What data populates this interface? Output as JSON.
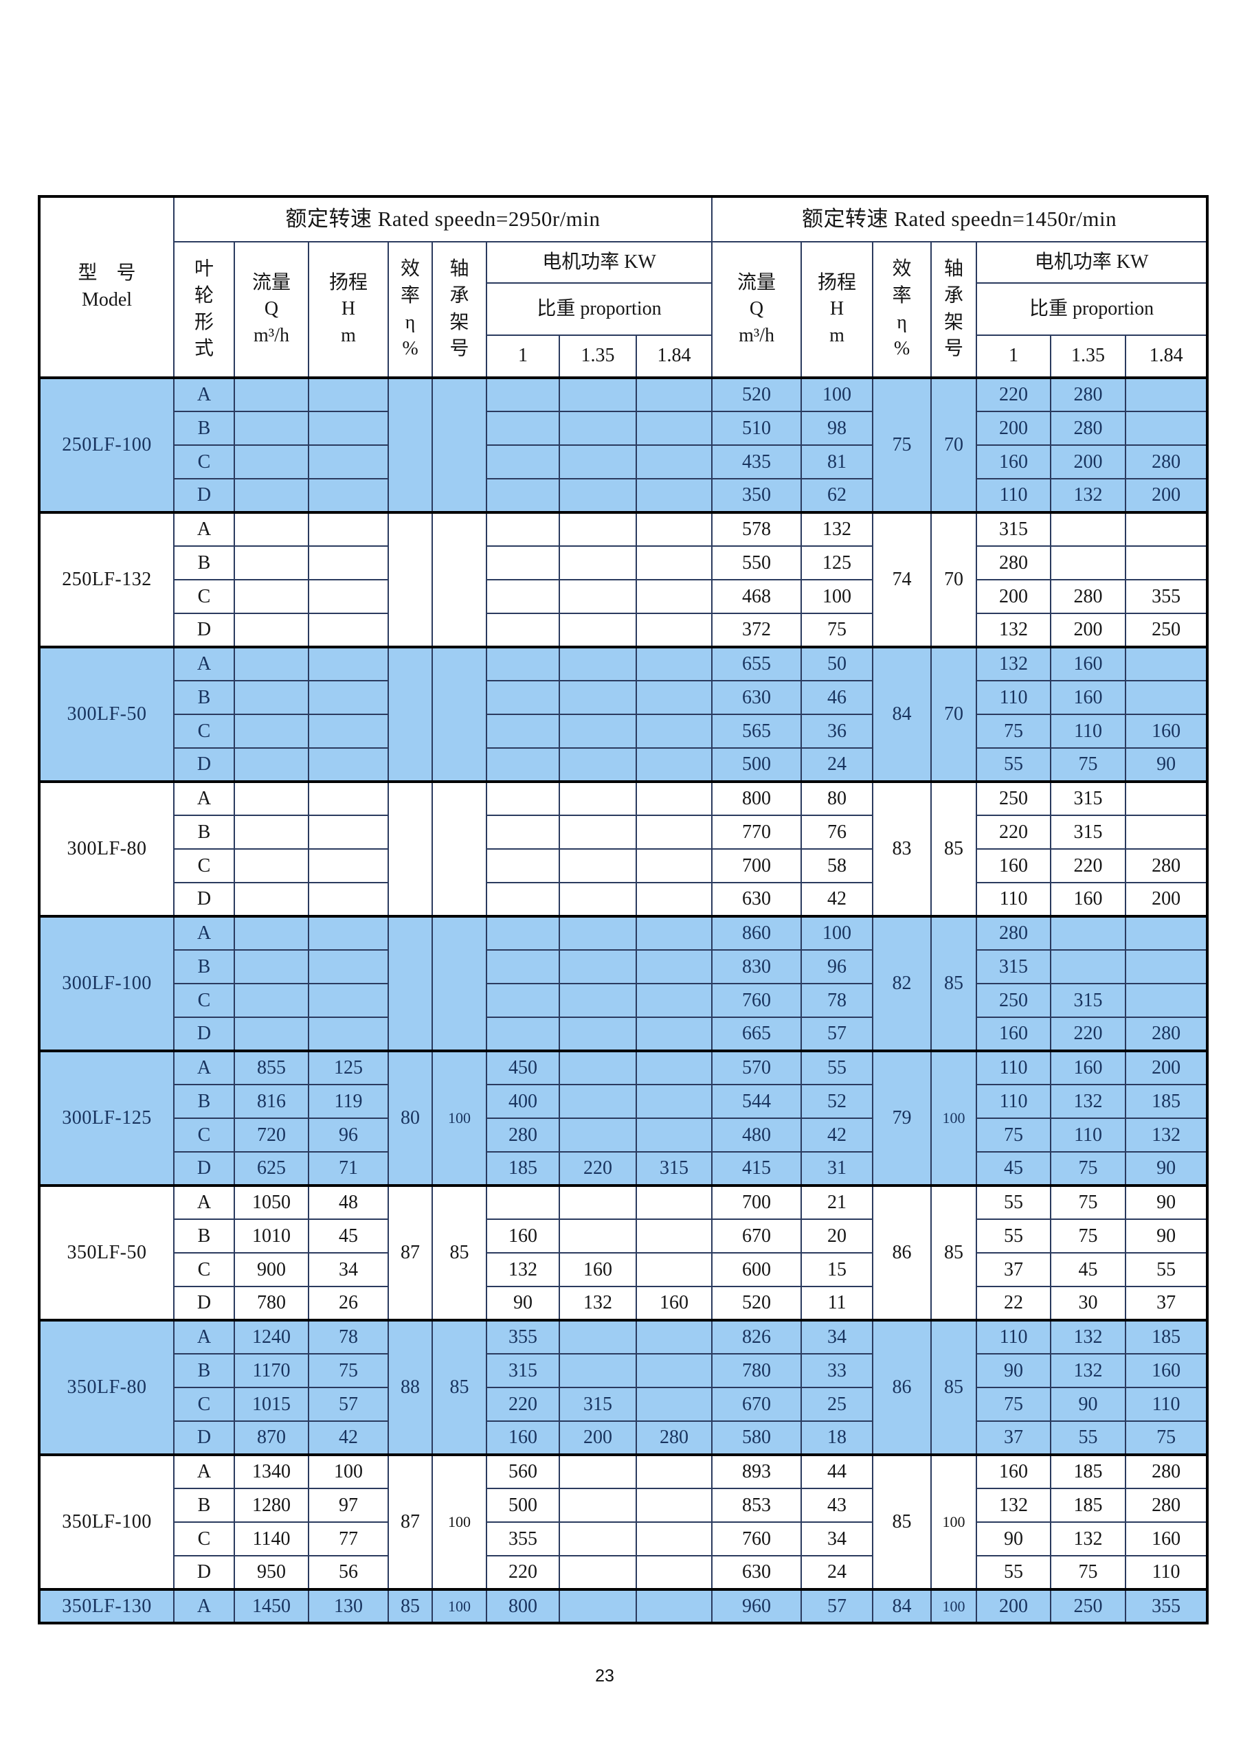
{
  "page": {
    "number": "23"
  },
  "table": {
    "header": {
      "model_label": "型　号\nModel",
      "speed_2950": "额定转速 Rated speedn=2950r/min",
      "speed_1450": "额定转速 Rated speedn=1450r/min",
      "impeller_label": "叶\n轮\n形\n式",
      "flow_label": "流量\nQ\nm³/h",
      "head_label": "扬程\nH\nm",
      "efficiency_label": "效\n率\nη\n%",
      "bearing_label": "轴\n承\n架\n号",
      "motor_power_label": "电机功率 KW",
      "proportion_label": "比重 proportion",
      "prop_cols": [
        "1",
        "1.35",
        "1.84"
      ]
    },
    "highlight_color": "#9ECDF3",
    "groups": [
      {
        "model": "250LF-100",
        "highlight": true,
        "eff_2950": "",
        "bearing_2950": "",
        "eff_1450": "75",
        "bearing_1450": "70",
        "rows": [
          {
            "impeller": "A",
            "q_2950": "",
            "h_2950": "",
            "p_2950": [
              "",
              "",
              ""
            ],
            "q_1450": "520",
            "h_1450": "100",
            "p_1450": [
              "220",
              "280",
              ""
            ]
          },
          {
            "impeller": "B",
            "q_2950": "",
            "h_2950": "",
            "p_2950": [
              "",
              "",
              ""
            ],
            "q_1450": "510",
            "h_1450": "98",
            "p_1450": [
              "200",
              "280",
              ""
            ]
          },
          {
            "impeller": "C",
            "q_2950": "",
            "h_2950": "",
            "p_2950": [
              "",
              "",
              ""
            ],
            "q_1450": "435",
            "h_1450": "81",
            "p_1450": [
              "160",
              "200",
              "280"
            ]
          },
          {
            "impeller": "D",
            "q_2950": "",
            "h_2950": "",
            "p_2950": [
              "",
              "",
              ""
            ],
            "q_1450": "350",
            "h_1450": "62",
            "p_1450": [
              "110",
              "132",
              "200"
            ]
          }
        ]
      },
      {
        "model": "250LF-132",
        "highlight": false,
        "eff_2950": "",
        "bearing_2950": "",
        "eff_1450": "74",
        "bearing_1450": "70",
        "rows": [
          {
            "impeller": "A",
            "q_2950": "",
            "h_2950": "",
            "p_2950": [
              "",
              "",
              ""
            ],
            "q_1450": "578",
            "h_1450": "132",
            "p_1450": [
              "315",
              "",
              ""
            ]
          },
          {
            "impeller": "B",
            "q_2950": "",
            "h_2950": "",
            "p_2950": [
              "",
              "",
              ""
            ],
            "q_1450": "550",
            "h_1450": "125",
            "p_1450": [
              "280",
              "",
              ""
            ]
          },
          {
            "impeller": "C",
            "q_2950": "",
            "h_2950": "",
            "p_2950": [
              "",
              "",
              ""
            ],
            "q_1450": "468",
            "h_1450": "100",
            "p_1450": [
              "200",
              "280",
              "355"
            ]
          },
          {
            "impeller": "D",
            "q_2950": "",
            "h_2950": "",
            "p_2950": [
              "",
              "",
              ""
            ],
            "q_1450": "372",
            "h_1450": "75",
            "p_1450": [
              "132",
              "200",
              "250"
            ]
          }
        ]
      },
      {
        "model": "300LF-50",
        "highlight": true,
        "eff_2950": "",
        "bearing_2950": "",
        "eff_1450": "84",
        "bearing_1450": "70",
        "rows": [
          {
            "impeller": "A",
            "q_2950": "",
            "h_2950": "",
            "p_2950": [
              "",
              "",
              ""
            ],
            "q_1450": "655",
            "h_1450": "50",
            "p_1450": [
              "132",
              "160",
              ""
            ]
          },
          {
            "impeller": "B",
            "q_2950": "",
            "h_2950": "",
            "p_2950": [
              "",
              "",
              ""
            ],
            "q_1450": "630",
            "h_1450": "46",
            "p_1450": [
              "110",
              "160",
              ""
            ]
          },
          {
            "impeller": "C",
            "q_2950": "",
            "h_2950": "",
            "p_2950": [
              "",
              "",
              ""
            ],
            "q_1450": "565",
            "h_1450": "36",
            "p_1450": [
              "75",
              "110",
              "160"
            ]
          },
          {
            "impeller": "D",
            "q_2950": "",
            "h_2950": "",
            "p_2950": [
              "",
              "",
              ""
            ],
            "q_1450": "500",
            "h_1450": "24",
            "p_1450": [
              "55",
              "75",
              "90"
            ]
          }
        ]
      },
      {
        "model": "300LF-80",
        "highlight": false,
        "eff_2950": "",
        "bearing_2950": "",
        "eff_1450": "83",
        "bearing_1450": "85",
        "rows": [
          {
            "impeller": "A",
            "q_2950": "",
            "h_2950": "",
            "p_2950": [
              "",
              "",
              ""
            ],
            "q_1450": "800",
            "h_1450": "80",
            "p_1450": [
              "250",
              "315",
              ""
            ]
          },
          {
            "impeller": "B",
            "q_2950": "",
            "h_2950": "",
            "p_2950": [
              "",
              "",
              ""
            ],
            "q_1450": "770",
            "h_1450": "76",
            "p_1450": [
              "220",
              "315",
              ""
            ]
          },
          {
            "impeller": "C",
            "q_2950": "",
            "h_2950": "",
            "p_2950": [
              "",
              "",
              ""
            ],
            "q_1450": "700",
            "h_1450": "58",
            "p_1450": [
              "160",
              "220",
              "280"
            ]
          },
          {
            "impeller": "D",
            "q_2950": "",
            "h_2950": "",
            "p_2950": [
              "",
              "",
              ""
            ],
            "q_1450": "630",
            "h_1450": "42",
            "p_1450": [
              "110",
              "160",
              "200"
            ]
          }
        ]
      },
      {
        "model": "300LF-100",
        "highlight": true,
        "eff_2950": "",
        "bearing_2950": "",
        "eff_1450": "82",
        "bearing_1450": "85",
        "rows": [
          {
            "impeller": "A",
            "q_2950": "",
            "h_2950": "",
            "p_2950": [
              "",
              "",
              ""
            ],
            "q_1450": "860",
            "h_1450": "100",
            "p_1450": [
              "280",
              "",
              ""
            ]
          },
          {
            "impeller": "B",
            "q_2950": "",
            "h_2950": "",
            "p_2950": [
              "",
              "",
              ""
            ],
            "q_1450": "830",
            "h_1450": "96",
            "p_1450": [
              "315",
              "",
              ""
            ]
          },
          {
            "impeller": "C",
            "q_2950": "",
            "h_2950": "",
            "p_2950": [
              "",
              "",
              ""
            ],
            "q_1450": "760",
            "h_1450": "78",
            "p_1450": [
              "250",
              "315",
              ""
            ]
          },
          {
            "impeller": "D",
            "q_2950": "",
            "h_2950": "",
            "p_2950": [
              "",
              "",
              ""
            ],
            "q_1450": "665",
            "h_1450": "57",
            "p_1450": [
              "160",
              "220",
              "280"
            ]
          }
        ]
      },
      {
        "model": "300LF-125",
        "highlight": true,
        "eff_2950": "80",
        "bearing_2950": "100",
        "eff_1450": "79",
        "bearing_1450": "100",
        "rows": [
          {
            "impeller": "A",
            "q_2950": "855",
            "h_2950": "125",
            "p_2950": [
              "450",
              "",
              ""
            ],
            "q_1450": "570",
            "h_1450": "55",
            "p_1450": [
              "110",
              "160",
              "200"
            ]
          },
          {
            "impeller": "B",
            "q_2950": "816",
            "h_2950": "119",
            "p_2950": [
              "400",
              "",
              ""
            ],
            "q_1450": "544",
            "h_1450": "52",
            "p_1450": [
              "110",
              "132",
              "185"
            ]
          },
          {
            "impeller": "C",
            "q_2950": "720",
            "h_2950": "96",
            "p_2950": [
              "280",
              "",
              ""
            ],
            "q_1450": "480",
            "h_1450": "42",
            "p_1450": [
              "75",
              "110",
              "132"
            ]
          },
          {
            "impeller": "D",
            "q_2950": "625",
            "h_2950": "71",
            "p_2950": [
              "185",
              "220",
              "315"
            ],
            "q_1450": "415",
            "h_1450": "31",
            "p_1450": [
              "45",
              "75",
              "90"
            ]
          }
        ]
      },
      {
        "model": "350LF-50",
        "highlight": false,
        "eff_2950": "87",
        "bearing_2950": "85",
        "eff_1450": "86",
        "bearing_1450": "85",
        "rows": [
          {
            "impeller": "A",
            "q_2950": "1050",
            "h_2950": "48",
            "p_2950": [
              "",
              "",
              ""
            ],
            "q_1450": "700",
            "h_1450": "21",
            "p_1450": [
              "55",
              "75",
              "90"
            ]
          },
          {
            "impeller": "B",
            "q_2950": "1010",
            "h_2950": "45",
            "p_2950": [
              "160",
              "",
              ""
            ],
            "q_1450": "670",
            "h_1450": "20",
            "p_1450": [
              "55",
              "75",
              "90"
            ]
          },
          {
            "impeller": "C",
            "q_2950": "900",
            "h_2950": "34",
            "p_2950": [
              "132",
              "160",
              ""
            ],
            "q_1450": "600",
            "h_1450": "15",
            "p_1450": [
              "37",
              "45",
              "55"
            ]
          },
          {
            "impeller": "D",
            "q_2950": "780",
            "h_2950": "26",
            "p_2950": [
              "90",
              "132",
              "160"
            ],
            "q_1450": "520",
            "h_1450": "11",
            "p_1450": [
              "22",
              "30",
              "37"
            ]
          }
        ]
      },
      {
        "model": "350LF-80",
        "highlight": true,
        "eff_2950": "88",
        "bearing_2950": "85",
        "eff_1450": "86",
        "bearing_1450": "85",
        "rows": [
          {
            "impeller": "A",
            "q_2950": "1240",
            "h_2950": "78",
            "p_2950": [
              "355",
              "",
              ""
            ],
            "q_1450": "826",
            "h_1450": "34",
            "p_1450": [
              "110",
              "132",
              "185"
            ]
          },
          {
            "impeller": "B",
            "q_2950": "1170",
            "h_2950": "75",
            "p_2950": [
              "315",
              "",
              ""
            ],
            "q_1450": "780",
            "h_1450": "33",
            "p_1450": [
              "90",
              "132",
              "160"
            ]
          },
          {
            "impeller": "C",
            "q_2950": "1015",
            "h_2950": "57",
            "p_2950": [
              "220",
              "315",
              ""
            ],
            "q_1450": "670",
            "h_1450": "25",
            "p_1450": [
              "75",
              "90",
              "110"
            ]
          },
          {
            "impeller": "D",
            "q_2950": "870",
            "h_2950": "42",
            "p_2950": [
              "160",
              "200",
              "280"
            ],
            "q_1450": "580",
            "h_1450": "18",
            "p_1450": [
              "37",
              "55",
              "75"
            ]
          }
        ]
      },
      {
        "model": "350LF-100",
        "highlight": false,
        "eff_2950": "87",
        "bearing_2950": "100",
        "eff_1450": "85",
        "bearing_1450": "100",
        "rows": [
          {
            "impeller": "A",
            "q_2950": "1340",
            "h_2950": "100",
            "p_2950": [
              "560",
              "",
              ""
            ],
            "q_1450": "893",
            "h_1450": "44",
            "p_1450": [
              "160",
              "185",
              "280"
            ]
          },
          {
            "impeller": "B",
            "q_2950": "1280",
            "h_2950": "97",
            "p_2950": [
              "500",
              "",
              ""
            ],
            "q_1450": "853",
            "h_1450": "43",
            "p_1450": [
              "132",
              "185",
              "280"
            ]
          },
          {
            "impeller": "C",
            "q_2950": "1140",
            "h_2950": "77",
            "p_2950": [
              "355",
              "",
              ""
            ],
            "q_1450": "760",
            "h_1450": "34",
            "p_1450": [
              "90",
              "132",
              "160"
            ]
          },
          {
            "impeller": "D",
            "q_2950": "950",
            "h_2950": "56",
            "p_2950": [
              "220",
              "",
              ""
            ],
            "q_1450": "630",
            "h_1450": "24",
            "p_1450": [
              "55",
              "75",
              "110"
            ]
          }
        ]
      },
      {
        "model": "350LF-130",
        "highlight": true,
        "eff_2950": "85",
        "bearing_2950": "100",
        "eff_1450": "84",
        "bearing_1450": "100",
        "rows": [
          {
            "impeller": "A",
            "q_2950": "1450",
            "h_2950": "130",
            "p_2950": [
              "800",
              "",
              ""
            ],
            "q_1450": "960",
            "h_1450": "57",
            "p_1450": [
              "200",
              "250",
              "355"
            ]
          }
        ]
      }
    ]
  }
}
